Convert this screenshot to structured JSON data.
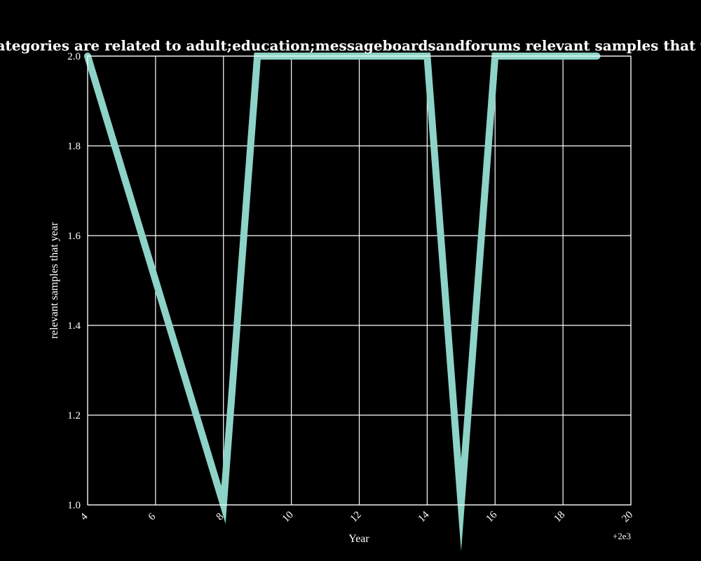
{
  "chart_data": {
    "type": "line",
    "title": "Ratio of how many categories are related to adult;education;messageboardsandforums relevant samples that year in privacy policies",
    "xlabel": "Year",
    "ylabel": "relevant samples that year",
    "x_offset_label": "+2e3",
    "xlim": [
      2004,
      2020
    ],
    "ylim": [
      1.0,
      2.0
    ],
    "x_tick_labels": [
      "4",
      "6",
      "8",
      "10",
      "12",
      "14",
      "16",
      "18",
      "20"
    ],
    "y_tick_labels": [
      "1.0",
      "1.2",
      "1.4",
      "1.6",
      "1.8",
      "2.0"
    ],
    "grid": true,
    "series": [
      {
        "color": "#8dd3c7",
        "x": [
          2004,
          2008,
          2009,
          2010,
          2011,
          2012,
          2013,
          2014,
          2015,
          2016,
          2017,
          2018,
          2019
        ],
        "y": [
          2.0,
          1.0,
          2.0,
          2.0,
          2.0,
          2.0,
          2.0,
          2.0,
          1.0,
          2.0,
          2.0,
          2.0,
          2.0
        ]
      }
    ]
  }
}
